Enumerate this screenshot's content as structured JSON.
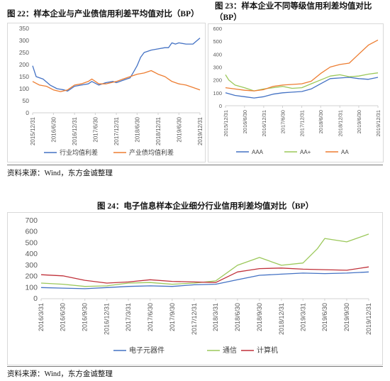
{
  "figure22": {
    "title": "图 22：样本企业与产业债信用利差平均值对比（BP）"
  },
  "figure23": {
    "title_line1": "图 23：样本企业不同等级信用利差均值对比",
    "title_line2": "（BP）"
  },
  "figure24": {
    "title": "图 24：电子信息样本企业细分行业信用利差均值对比（BP）"
  },
  "sources": {
    "top": "资料来源：Wind，东方金诚整理",
    "bottom": "资料来源：Wind，东方金诚整理"
  },
  "colors": {
    "blue": "#4472C4",
    "orange": "#ED7D31",
    "green": "#9BC85A",
    "red": "#C0313A"
  },
  "chart_data": [
    {
      "id": "chart22",
      "type": "line",
      "title": "",
      "ylim": [
        0,
        350
      ],
      "yticks": [
        0,
        50,
        100,
        150,
        200,
        250,
        300,
        350
      ],
      "x_dates": [
        "2015/12/31",
        "2016/6/30",
        "2016/12/31",
        "2017/6/30",
        "2017/12/31",
        "2018/6/30",
        "2018/12/31",
        "2019/6/30",
        "2019/12/31"
      ],
      "grid": false,
      "legend_position": "bottom",
      "series": [
        {
          "name": "行业均值利差",
          "color": "#4472C4",
          "points": [
            [
              "2015/12/31",
              195
            ],
            [
              "2016/1/31",
              150
            ],
            [
              "2016/3/31",
              140
            ],
            [
              "2016/5/31",
              115
            ],
            [
              "2016/7/31",
              100
            ],
            [
              "2016/9/30",
              95
            ],
            [
              "2016/10/31",
              90
            ],
            [
              "2016/12/31",
              110
            ],
            [
              "2017/2/28",
              115
            ],
            [
              "2017/4/30",
              120
            ],
            [
              "2017/5/31",
              130
            ],
            [
              "2017/7/31",
              115
            ],
            [
              "2017/9/30",
              125
            ],
            [
              "2017/11/30",
              130
            ],
            [
              "2017/12/31",
              125
            ],
            [
              "2018/2/28",
              135
            ],
            [
              "2018/3/31",
              140
            ],
            [
              "2018/4/30",
              145
            ],
            [
              "2018/5/31",
              170
            ],
            [
              "2018/6/30",
              195
            ],
            [
              "2018/7/31",
              230
            ],
            [
              "2018/8/31",
              250
            ],
            [
              "2018/10/31",
              260
            ],
            [
              "2018/12/31",
              265
            ],
            [
              "2019/2/28",
              270
            ],
            [
              "2019/3/31",
              270
            ],
            [
              "2019/4/30",
              290
            ],
            [
              "2019/5/31",
              285
            ],
            [
              "2019/6/30",
              290
            ],
            [
              "2019/8/31",
              285
            ],
            [
              "2019/10/31",
              285
            ],
            [
              "2019/12/31",
              310
            ]
          ]
        },
        {
          "name": "产业债均值利差",
          "color": "#ED7D31",
          "points": [
            [
              "2015/12/31",
              130
            ],
            [
              "2016/2/29",
              115
            ],
            [
              "2016/4/30",
              110
            ],
            [
              "2016/6/30",
              95
            ],
            [
              "2016/8/31",
              88
            ],
            [
              "2016/10/31",
              95
            ],
            [
              "2016/12/31",
              115
            ],
            [
              "2017/2/28",
              120
            ],
            [
              "2017/4/30",
              130
            ],
            [
              "2017/5/31",
              140
            ],
            [
              "2017/7/31",
              120
            ],
            [
              "2017/9/30",
              120
            ],
            [
              "2017/12/31",
              130
            ],
            [
              "2018/2/28",
              140
            ],
            [
              "2018/4/30",
              150
            ],
            [
              "2018/6/30",
              160
            ],
            [
              "2018/8/31",
              165
            ],
            [
              "2018/10/31",
              175
            ],
            [
              "2018/12/31",
              160
            ],
            [
              "2019/2/28",
              150
            ],
            [
              "2019/4/30",
              130
            ],
            [
              "2019/6/30",
              120
            ],
            [
              "2019/8/31",
              115
            ],
            [
              "2019/10/31",
              105
            ],
            [
              "2019/12/31",
              95
            ]
          ]
        }
      ]
    },
    {
      "id": "chart23",
      "type": "line",
      "title": "",
      "ylim": [
        0,
        600
      ],
      "yticks": [
        0,
        100,
        200,
        300,
        400,
        500,
        600
      ],
      "x_dates": [
        "2015/12/31",
        "2016/6/30",
        "2016/12/31",
        "2017/6/30",
        "2017/12/31",
        "2018/6/30",
        "2018/12/31",
        "2019/6/30",
        "2019/12/31"
      ],
      "grid": false,
      "legend_position": "bottom",
      "series": [
        {
          "name": "AAA",
          "color": "#4472C4",
          "points": [
            [
              "2015/12/31",
              100
            ],
            [
              "2016/3/31",
              80
            ],
            [
              "2016/6/30",
              70
            ],
            [
              "2016/9/30",
              60
            ],
            [
              "2016/12/31",
              70
            ],
            [
              "2017/3/31",
              90
            ],
            [
              "2017/6/30",
              100
            ],
            [
              "2017/9/30",
              105
            ],
            [
              "2017/12/31",
              110
            ],
            [
              "2018/3/31",
              130
            ],
            [
              "2018/6/30",
              170
            ],
            [
              "2018/9/30",
              210
            ],
            [
              "2018/12/31",
              215
            ],
            [
              "2019/3/31",
              220
            ],
            [
              "2019/6/30",
              210
            ],
            [
              "2019/9/30",
              205
            ],
            [
              "2019/12/31",
              220
            ]
          ]
        },
        {
          "name": "AA+",
          "color": "#9BC85A",
          "points": [
            [
              "2015/12/31",
              240
            ],
            [
              "2016/1/31",
              200
            ],
            [
              "2016/3/31",
              160
            ],
            [
              "2016/6/30",
              140
            ],
            [
              "2016/9/30",
              115
            ],
            [
              "2016/12/31",
              130
            ],
            [
              "2017/3/31",
              140
            ],
            [
              "2017/6/30",
              150
            ],
            [
              "2017/9/30",
              135
            ],
            [
              "2017/12/31",
              140
            ],
            [
              "2018/3/31",
              170
            ],
            [
              "2018/6/30",
              200
            ],
            [
              "2018/9/30",
              230
            ],
            [
              "2018/12/31",
              240
            ],
            [
              "2019/3/31",
              225
            ],
            [
              "2019/6/30",
              230
            ],
            [
              "2019/9/30",
              245
            ],
            [
              "2019/12/31",
              255
            ]
          ]
        },
        {
          "name": "AA",
          "color": "#ED7D31",
          "points": [
            [
              "2015/12/31",
              140
            ],
            [
              "2016/3/31",
              130
            ],
            [
              "2016/6/30",
              120
            ],
            [
              "2016/9/30",
              115
            ],
            [
              "2016/12/31",
              125
            ],
            [
              "2017/3/31",
              150
            ],
            [
              "2017/6/30",
              160
            ],
            [
              "2017/9/30",
              165
            ],
            [
              "2017/12/31",
              170
            ],
            [
              "2018/3/31",
              190
            ],
            [
              "2018/6/30",
              250
            ],
            [
              "2018/9/30",
              300
            ],
            [
              "2018/12/31",
              320
            ],
            [
              "2019/3/31",
              330
            ],
            [
              "2019/6/30",
              400
            ],
            [
              "2019/9/30",
              470
            ],
            [
              "2019/12/31",
              510
            ]
          ]
        }
      ]
    },
    {
      "id": "chart24",
      "type": "line",
      "title": "",
      "ylim": [
        0,
        700
      ],
      "yticks": [
        0,
        100,
        200,
        300,
        400,
        500,
        600,
        700
      ],
      "x_dates": [
        "2016/3/31",
        "2016/6/30",
        "2016/9/30",
        "2016/12/31",
        "2017/3/31",
        "2017/6/30",
        "2017/9/30",
        "2017/12/31",
        "2018/3/31",
        "2018/6/30",
        "2018/9/30",
        "2018/12/31",
        "2019/3/31",
        "2019/6/30",
        "2019/9/30",
        "2019/12/31"
      ],
      "grid": false,
      "legend_position": "bottom",
      "series": [
        {
          "name": "电子元器件",
          "color": "#4472C4",
          "points": [
            [
              "2016/3/31",
              100
            ],
            [
              "2016/6/30",
              95
            ],
            [
              "2016/9/30",
              90
            ],
            [
              "2016/12/31",
              100
            ],
            [
              "2017/3/31",
              110
            ],
            [
              "2017/6/30",
              115
            ],
            [
              "2017/9/30",
              110
            ],
            [
              "2017/12/31",
              125
            ],
            [
              "2018/3/31",
              130
            ],
            [
              "2018/6/30",
              170
            ],
            [
              "2018/9/30",
              210
            ],
            [
              "2018/12/31",
              220
            ],
            [
              "2019/3/31",
              230
            ],
            [
              "2019/6/30",
              225
            ],
            [
              "2019/9/30",
              230
            ],
            [
              "2019/12/31",
              240
            ]
          ]
        },
        {
          "name": "通信",
          "color": "#9BC85A",
          "points": [
            [
              "2016/3/31",
              140
            ],
            [
              "2016/6/30",
              130
            ],
            [
              "2016/9/30",
              110
            ],
            [
              "2016/12/31",
              115
            ],
            [
              "2017/3/31",
              140
            ],
            [
              "2017/6/30",
              145
            ],
            [
              "2017/9/30",
              130
            ],
            [
              "2017/12/31",
              140
            ],
            [
              "2018/3/31",
              160
            ],
            [
              "2018/6/30",
              300
            ],
            [
              "2018/9/30",
              370
            ],
            [
              "2018/12/31",
              300
            ],
            [
              "2019/3/31",
              320
            ],
            [
              "2019/5/31",
              450
            ],
            [
              "2019/6/30",
              540
            ],
            [
              "2019/9/30",
              510
            ],
            [
              "2019/12/31",
              580
            ]
          ]
        },
        {
          "name": "计算机",
          "color": "#C0313A",
          "points": [
            [
              "2016/3/31",
              215
            ],
            [
              "2016/6/30",
              205
            ],
            [
              "2016/9/30",
              165
            ],
            [
              "2016/12/31",
              140
            ],
            [
              "2017/3/31",
              150
            ],
            [
              "2017/6/30",
              170
            ],
            [
              "2017/9/30",
              155
            ],
            [
              "2017/12/31",
              150
            ],
            [
              "2018/3/31",
              145
            ],
            [
              "2018/6/30",
              240
            ],
            [
              "2018/9/30",
              270
            ],
            [
              "2018/12/31",
              275
            ],
            [
              "2019/3/31",
              265
            ],
            [
              "2019/6/30",
              260
            ],
            [
              "2019/9/30",
              255
            ],
            [
              "2019/12/31",
              285
            ]
          ]
        }
      ]
    }
  ]
}
